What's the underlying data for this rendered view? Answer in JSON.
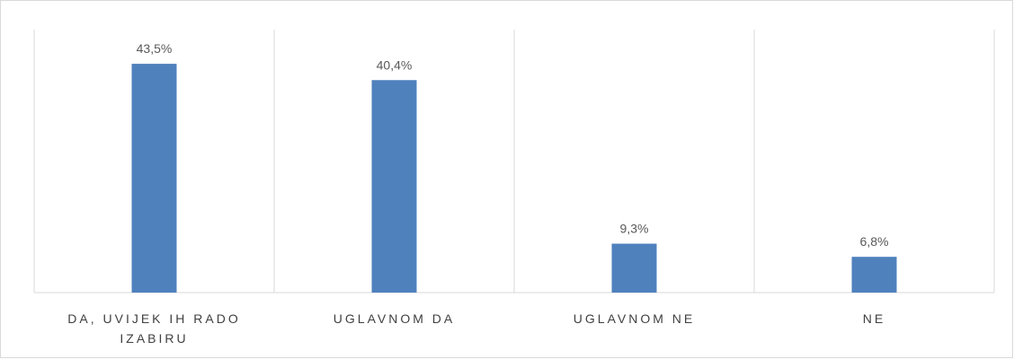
{
  "chart_data": {
    "type": "bar",
    "categories": [
      "DA, UVIJEK IH RADO IZABIRU",
      "UGLAVNOM DA",
      "UGLAVNOM NE",
      "NE"
    ],
    "values": [
      43.5,
      40.4,
      9.3,
      6.8
    ],
    "value_labels": [
      "43,5%",
      "40,4%",
      "9,3%",
      "6,8%"
    ],
    "color": "#4f81bd",
    "ylim": [
      0,
      50
    ]
  }
}
